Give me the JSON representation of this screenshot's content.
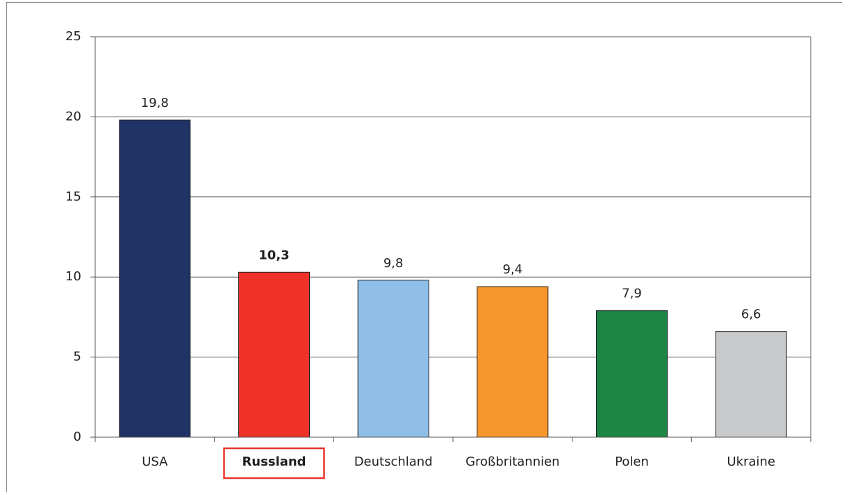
{
  "chart_data": {
    "type": "bar",
    "categories": [
      "USA",
      "Russland",
      "Deutschland",
      "Großbritannien",
      "Polen",
      "Ukraine"
    ],
    "values": [
      19.8,
      10.3,
      9.8,
      9.4,
      7.9,
      6.6
    ],
    "value_labels": [
      "19,8",
      "10,3",
      "9,8",
      "9,4",
      "7,9",
      "6,6"
    ],
    "colors": [
      "#1f3366",
      "#ee3228",
      "#8fbfe8",
      "#f7962b",
      "#1e8544",
      "#c8c9cb"
    ],
    "highlight_index": 1,
    "ylim": [
      0,
      25
    ],
    "yticks": [
      0,
      5,
      10,
      15,
      20,
      25
    ],
    "grid": true
  }
}
